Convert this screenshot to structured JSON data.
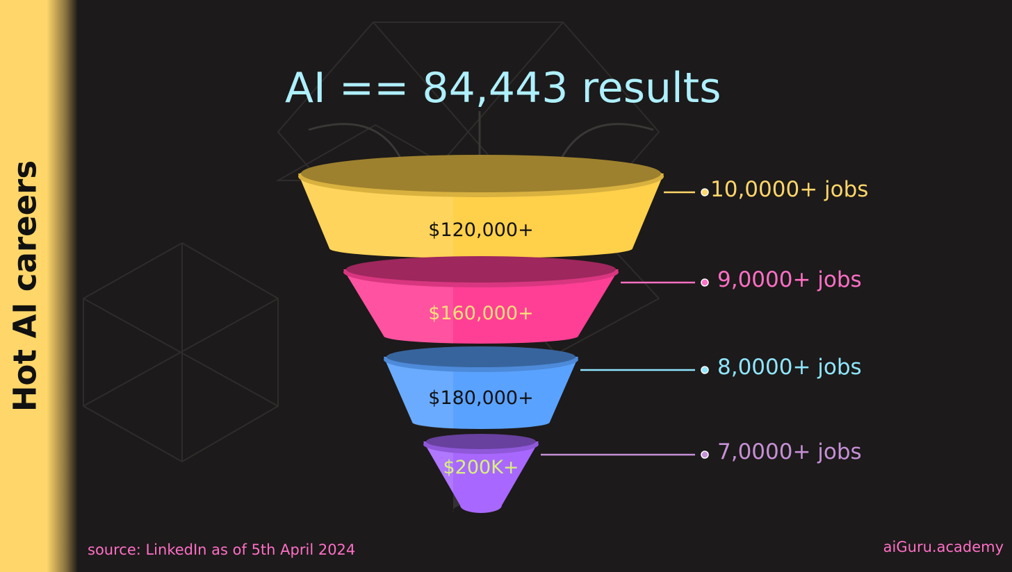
{
  "sidebar": {
    "title": "Hot AI careers"
  },
  "headline": "AI == 84,443 results",
  "tiers": [
    {
      "salary": "$120,000+",
      "jobs": "10,0000+ jobs",
      "color": "#ffd04a",
      "label_color": "#111111",
      "jobs_color": "#ffd66a"
    },
    {
      "salary": "$160,000+",
      "jobs": "9,0000+ jobs",
      "color": "#ff3f96",
      "label_color": "#ffe27a",
      "jobs_color": "#ff6fc6"
    },
    {
      "salary": "$180,000+",
      "jobs": "8,0000+ jobs",
      "color": "#5aa2ff",
      "label_color": "#111111",
      "jobs_color": "#8fe6ff"
    },
    {
      "salary": "$200K+",
      "jobs": "7,0000+ jobs",
      "color": "#a868ff",
      "label_color": "#d8f27a",
      "jobs_color": "#c690d6"
    }
  ],
  "footer": {
    "source": "source: LinkedIn as of 5th April 2024",
    "brand": "aiGuru.academy"
  }
}
